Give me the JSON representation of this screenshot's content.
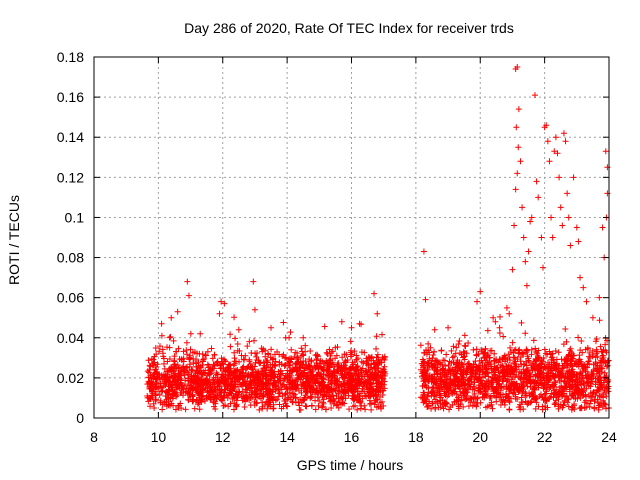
{
  "chart_data": {
    "type": "scatter",
    "title": "Day 286 of 2020, Rate Of TEC Index for receiver trds",
    "xlabel": "GPS time / hours",
    "ylabel": "ROTI / TECUs",
    "xlim": [
      8,
      24
    ],
    "ylim": [
      0,
      0.18
    ],
    "x_ticks": [
      8,
      10,
      12,
      14,
      16,
      18,
      20,
      22,
      24
    ],
    "x_tick_labels": [
      "8",
      "10",
      "12",
      "14",
      "16",
      "18",
      "20",
      "22",
      "24"
    ],
    "y_ticks": [
      0,
      0.02,
      0.04,
      0.06,
      0.08,
      0.1,
      0.12,
      0.14,
      0.16,
      0.18
    ],
    "y_tick_labels": [
      "0",
      "0.02",
      "0.04",
      "0.06",
      "0.08",
      "0.1",
      "0.12",
      "0.14",
      "0.16",
      "0.18"
    ],
    "grid": true,
    "marker": "+",
    "marker_color": "#ff0000",
    "series": [
      {
        "name": "ROTI",
        "segments": [
          {
            "t_start": 9.65,
            "t_end": 17.05,
            "base": 0.018,
            "spread": 0.012
          },
          {
            "t_start": 18.15,
            "t_end": 24.0,
            "base": 0.019,
            "spread": 0.014
          }
        ],
        "points": [
          {
            "x": 10.1,
            "y": 0.047
          },
          {
            "x": 10.4,
            "y": 0.05
          },
          {
            "x": 10.6,
            "y": 0.053
          },
          {
            "x": 10.9,
            "y": 0.068
          },
          {
            "x": 10.95,
            "y": 0.061
          },
          {
            "x": 11.3,
            "y": 0.042
          },
          {
            "x": 11.9,
            "y": 0.052
          },
          {
            "x": 11.95,
            "y": 0.058
          },
          {
            "x": 12.05,
            "y": 0.057
          },
          {
            "x": 12.5,
            "y": 0.044
          },
          {
            "x": 12.95,
            "y": 0.068
          },
          {
            "x": 13.0,
            "y": 0.054
          },
          {
            "x": 13.5,
            "y": 0.045
          },
          {
            "x": 14.5,
            "y": 0.04
          },
          {
            "x": 15.7,
            "y": 0.048
          },
          {
            "x": 16.0,
            "y": 0.045
          },
          {
            "x": 16.25,
            "y": 0.047
          },
          {
            "x": 16.7,
            "y": 0.062
          },
          {
            "x": 16.8,
            "y": 0.052
          },
          {
            "x": 18.25,
            "y": 0.083
          },
          {
            "x": 18.3,
            "y": 0.059
          },
          {
            "x": 19.0,
            "y": 0.045
          },
          {
            "x": 19.9,
            "y": 0.058
          },
          {
            "x": 20.0,
            "y": 0.063
          },
          {
            "x": 20.4,
            "y": 0.05
          },
          {
            "x": 20.6,
            "y": 0.045
          },
          {
            "x": 20.9,
            "y": 0.052
          },
          {
            "x": 21.0,
            "y": 0.074
          },
          {
            "x": 21.05,
            "y": 0.096
          },
          {
            "x": 21.1,
            "y": 0.114
          },
          {
            "x": 21.1,
            "y": 0.174
          },
          {
            "x": 21.15,
            "y": 0.175
          },
          {
            "x": 21.2,
            "y": 0.154
          },
          {
            "x": 21.12,
            "y": 0.145
          },
          {
            "x": 21.18,
            "y": 0.135
          },
          {
            "x": 21.25,
            "y": 0.128
          },
          {
            "x": 21.15,
            "y": 0.122
          },
          {
            "x": 21.3,
            "y": 0.105
          },
          {
            "x": 21.35,
            "y": 0.09
          },
          {
            "x": 21.4,
            "y": 0.078
          },
          {
            "x": 21.45,
            "y": 0.066
          },
          {
            "x": 21.5,
            "y": 0.083
          },
          {
            "x": 21.55,
            "y": 0.098
          },
          {
            "x": 21.6,
            "y": 0.1
          },
          {
            "x": 21.7,
            "y": 0.161
          },
          {
            "x": 21.75,
            "y": 0.118
          },
          {
            "x": 21.8,
            "y": 0.11
          },
          {
            "x": 21.9,
            "y": 0.09
          },
          {
            "x": 21.95,
            "y": 0.075
          },
          {
            "x": 22.0,
            "y": 0.145
          },
          {
            "x": 22.05,
            "y": 0.146
          },
          {
            "x": 22.1,
            "y": 0.138
          },
          {
            "x": 22.15,
            "y": 0.128
          },
          {
            "x": 22.2,
            "y": 0.1
          },
          {
            "x": 22.25,
            "y": 0.09
          },
          {
            "x": 22.3,
            "y": 0.133
          },
          {
            "x": 22.35,
            "y": 0.14
          },
          {
            "x": 22.4,
            "y": 0.132
          },
          {
            "x": 22.45,
            "y": 0.12
          },
          {
            "x": 22.5,
            "y": 0.105
          },
          {
            "x": 22.55,
            "y": 0.096
          },
          {
            "x": 22.6,
            "y": 0.142
          },
          {
            "x": 22.65,
            "y": 0.138
          },
          {
            "x": 22.7,
            "y": 0.112
          },
          {
            "x": 22.75,
            "y": 0.1
          },
          {
            "x": 22.8,
            "y": 0.086
          },
          {
            "x": 22.9,
            "y": 0.12
          },
          {
            "x": 23.0,
            "y": 0.095
          },
          {
            "x": 23.05,
            "y": 0.088
          },
          {
            "x": 23.1,
            "y": 0.07
          },
          {
            "x": 23.2,
            "y": 0.065
          },
          {
            "x": 23.3,
            "y": 0.058
          },
          {
            "x": 23.5,
            "y": 0.05
          },
          {
            "x": 23.7,
            "y": 0.06
          },
          {
            "x": 23.8,
            "y": 0.095
          },
          {
            "x": 23.85,
            "y": 0.08
          },
          {
            "x": 23.9,
            "y": 0.133
          },
          {
            "x": 23.95,
            "y": 0.125
          },
          {
            "x": 23.95,
            "y": 0.112
          },
          {
            "x": 23.92,
            "y": 0.1
          }
        ]
      }
    ]
  }
}
